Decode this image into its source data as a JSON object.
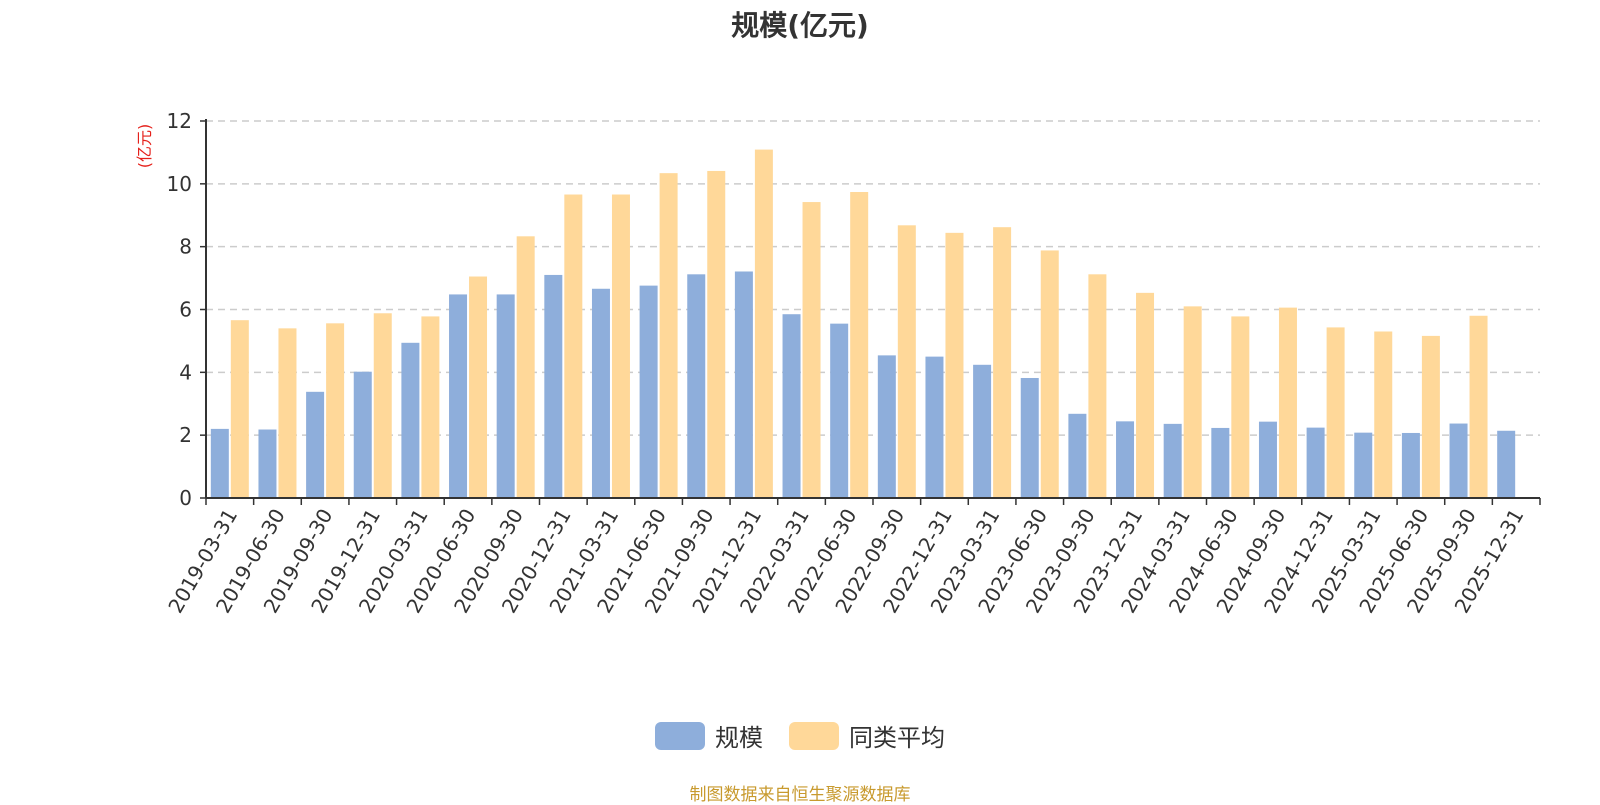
{
  "chart_data": {
    "type": "bar",
    "title": "规模(亿元)",
    "ylabel": "(亿元)",
    "ylim": [
      0,
      12
    ],
    "yticks": [
      0,
      2,
      4,
      6,
      8,
      10,
      12
    ],
    "grid": true,
    "legend_position": "bottom",
    "categories": [
      "2019-03-31",
      "2019-06-30",
      "2019-09-30",
      "2019-12-31",
      "2020-03-31",
      "2020-06-30",
      "2020-09-30",
      "2020-12-31",
      "2021-03-31",
      "2021-06-30",
      "2021-09-30",
      "2021-12-31",
      "2022-03-31",
      "2022-06-30",
      "2022-09-30",
      "2022-12-31",
      "2023-03-31",
      "2023-06-30",
      "2023-09-30",
      "2023-12-31",
      "2024-03-31",
      "2024-06-30",
      "2024-09-30",
      "2024-12-31",
      "2025-03-31",
      "2025-06-30",
      "2025-09-30",
      "2025-12-31"
    ],
    "series": [
      {
        "name": "规模",
        "color": "#8eaedb",
        "values": [
          2.2,
          2.18,
          3.38,
          4.02,
          4.94,
          6.48,
          6.48,
          7.1,
          6.66,
          6.76,
          7.12,
          7.21,
          5.85,
          5.55,
          4.54,
          4.5,
          4.24,
          3.82,
          2.68,
          2.44,
          2.36,
          2.23,
          2.43,
          2.24,
          2.08,
          2.07,
          2.37,
          2.14
        ]
      },
      {
        "name": "同类平均",
        "color": "#ffd899",
        "values": [
          5.66,
          5.4,
          5.56,
          5.88,
          5.78,
          7.05,
          8.33,
          9.66,
          9.66,
          10.34,
          10.41,
          11.09,
          9.42,
          9.74,
          8.68,
          8.44,
          8.62,
          7.88,
          7.12,
          6.53,
          6.1,
          5.78,
          6.06,
          5.43,
          5.3,
          5.16,
          5.8,
          null
        ]
      }
    ]
  },
  "source_note": "制图数据来自恒生聚源数据库"
}
